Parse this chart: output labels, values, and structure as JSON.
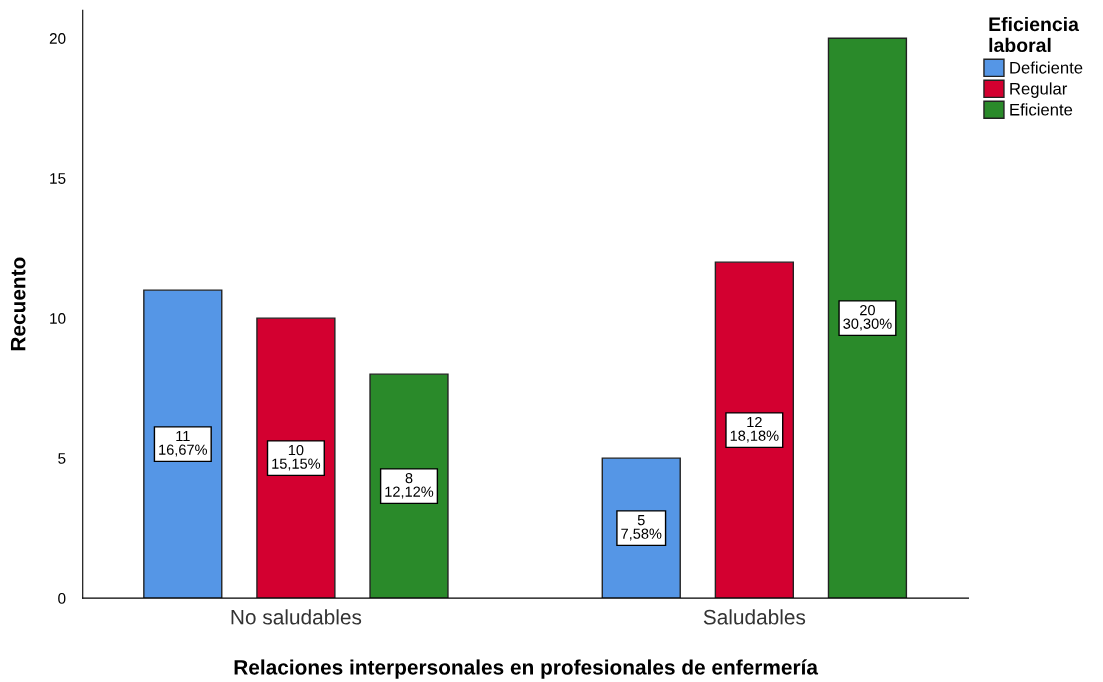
{
  "chart_data": {
    "type": "bar",
    "xlabel": "Relaciones interpersonales en profesionales de enfermería",
    "ylabel": "Recuento",
    "legend_title": "Eficiencia\nlaboral",
    "legend": "top right",
    "categories": [
      "No saludables",
      "Saludables"
    ],
    "series": [
      {
        "name": "Deficiente",
        "color": "#5596e6",
        "values": [
          11,
          5
        ],
        "value_labels": [
          "11\n16,67%",
          "5\n7,58%"
        ]
      },
      {
        "name": "Regular",
        "color": "#d30030",
        "values": [
          10,
          12
        ],
        "value_labels": [
          "10\n15,15%",
          "12\n18,18%"
        ]
      },
      {
        "name": "Eficiente",
        "color": "#2a8a2a",
        "values": [
          8,
          20
        ],
        "value_labels": [
          "8\n12,12%",
          "20\n30,30%"
        ]
      }
    ],
    "ylim": [
      0,
      21
    ],
    "yticks": [
      0,
      5,
      10,
      15,
      20
    ],
    "grid": false
  }
}
